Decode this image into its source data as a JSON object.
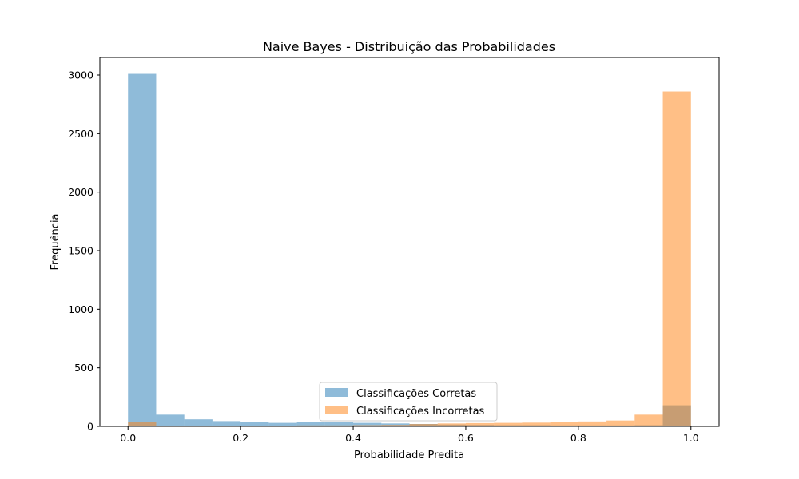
{
  "chart_data": {
    "type": "bar",
    "title": "Naive Bayes - Distribuição das Probabilidades",
    "xlabel": "Probabilidade Predita",
    "ylabel": "Frequência",
    "xlim": [
      -0.05,
      1.05
    ],
    "ylim": [
      0,
      3150
    ],
    "xticks": [
      0.0,
      0.2,
      0.4,
      0.6,
      0.8,
      1.0
    ],
    "xtick_labels": [
      "0.0",
      "0.2",
      "0.4",
      "0.6",
      "0.8",
      "1.0"
    ],
    "yticks": [
      0,
      500,
      1000,
      1500,
      2000,
      2500,
      3000
    ],
    "ytick_labels": [
      "0",
      "500",
      "1000",
      "1500",
      "2000",
      "2500",
      "3000"
    ],
    "bin_edges": [
      0.0,
      0.05,
      0.1,
      0.15,
      0.2,
      0.25,
      0.3,
      0.35,
      0.4,
      0.45,
      0.5,
      0.55,
      0.6,
      0.65,
      0.7,
      0.75,
      0.8,
      0.85,
      0.9,
      0.95,
      1.0
    ],
    "grid": false,
    "legend_position": "lower-center",
    "series": [
      {
        "name": "Classificações Corretas",
        "color": "#1f77b4",
        "alpha": 0.5,
        "values": [
          3010,
          100,
          60,
          45,
          35,
          30,
          40,
          35,
          30,
          25,
          20,
          15,
          12,
          10,
          10,
          8,
          8,
          8,
          10,
          180
        ]
      },
      {
        "name": "Classificações Incorretas",
        "color": "#ff7f0e",
        "alpha": 0.5,
        "values": [
          40,
          5,
          5,
          5,
          5,
          5,
          8,
          8,
          10,
          12,
          20,
          25,
          28,
          30,
          32,
          40,
          42,
          50,
          100,
          2860
        ]
      }
    ]
  }
}
